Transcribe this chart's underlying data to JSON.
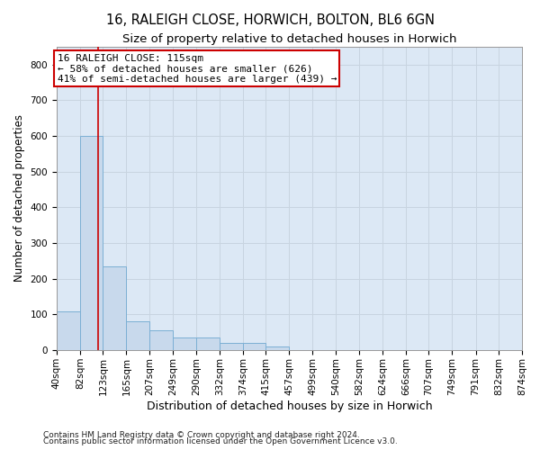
{
  "title1": "16, RALEIGH CLOSE, HORWICH, BOLTON, BL6 6GN",
  "title2": "Size of property relative to detached houses in Horwich",
  "xlabel": "Distribution of detached houses by size in Horwich",
  "ylabel": "Number of detached properties",
  "footnote1": "Contains HM Land Registry data © Crown copyright and database right 2024.",
  "footnote2": "Contains public sector information licensed under the Open Government Licence v3.0.",
  "bin_edges": [
    40,
    82,
    123,
    165,
    207,
    249,
    290,
    332,
    374,
    415,
    457,
    499,
    540,
    582,
    624,
    666,
    707,
    749,
    791,
    832,
    874
  ],
  "bar_heights": [
    110,
    600,
    235,
    80,
    55,
    35,
    35,
    20,
    20,
    10,
    0,
    0,
    0,
    0,
    0,
    0,
    0,
    0,
    0,
    0
  ],
  "bar_color": "#c8d9ec",
  "bar_edge_color": "#7bafd4",
  "grid_color": "#c8d4e0",
  "background_color": "#dce8f5",
  "fig_background_color": "#ffffff",
  "annotation_box_color": "#cc0000",
  "property_line_color": "#cc0000",
  "property_size": 115,
  "annotation_line1": "16 RALEIGH CLOSE: 115sqm",
  "annotation_line2": "← 58% of detached houses are smaller (626)",
  "annotation_line3": "41% of semi-detached houses are larger (439) →",
  "ylim": [
    0,
    850
  ],
  "yticks": [
    0,
    100,
    200,
    300,
    400,
    500,
    600,
    700,
    800
  ],
  "title1_fontsize": 10.5,
  "title2_fontsize": 9.5,
  "xlabel_fontsize": 9,
  "ylabel_fontsize": 8.5,
  "tick_fontsize": 7.5,
  "annot_fontsize": 8,
  "footnote_fontsize": 6.5
}
